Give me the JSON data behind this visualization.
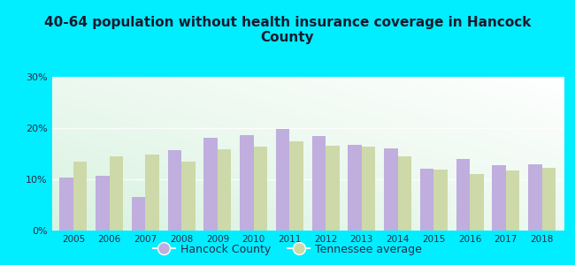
{
  "title": "40-64 population without health insurance coverage in Hancock\nCounty",
  "years": [
    2005,
    2006,
    2007,
    2008,
    2009,
    2010,
    2011,
    2012,
    2013,
    2014,
    2015,
    2016,
    2017,
    2018
  ],
  "hancock": [
    10.3,
    10.7,
    6.5,
    15.7,
    18.1,
    18.7,
    19.9,
    18.4,
    16.8,
    16.0,
    12.1,
    14.0,
    12.8,
    13.0
  ],
  "tennessee": [
    13.4,
    14.5,
    14.9,
    13.5,
    15.8,
    16.3,
    17.4,
    16.6,
    16.4,
    14.5,
    11.9,
    11.0,
    11.7,
    12.2
  ],
  "hancock_color": "#c0aede",
  "tennessee_color": "#cdd9a8",
  "bg_outer": "#00eeff",
  "ylim": [
    0,
    30
  ],
  "yticks": [
    0,
    10,
    20,
    30
  ],
  "ytick_labels": [
    "0%",
    "10%",
    "20%",
    "30%"
  ],
  "legend_hancock": "Hancock County",
  "legend_tennessee": "Tennessee average",
  "bar_width": 0.38,
  "title_color": "#1a1a2e",
  "tick_color": "#2a2a4a"
}
